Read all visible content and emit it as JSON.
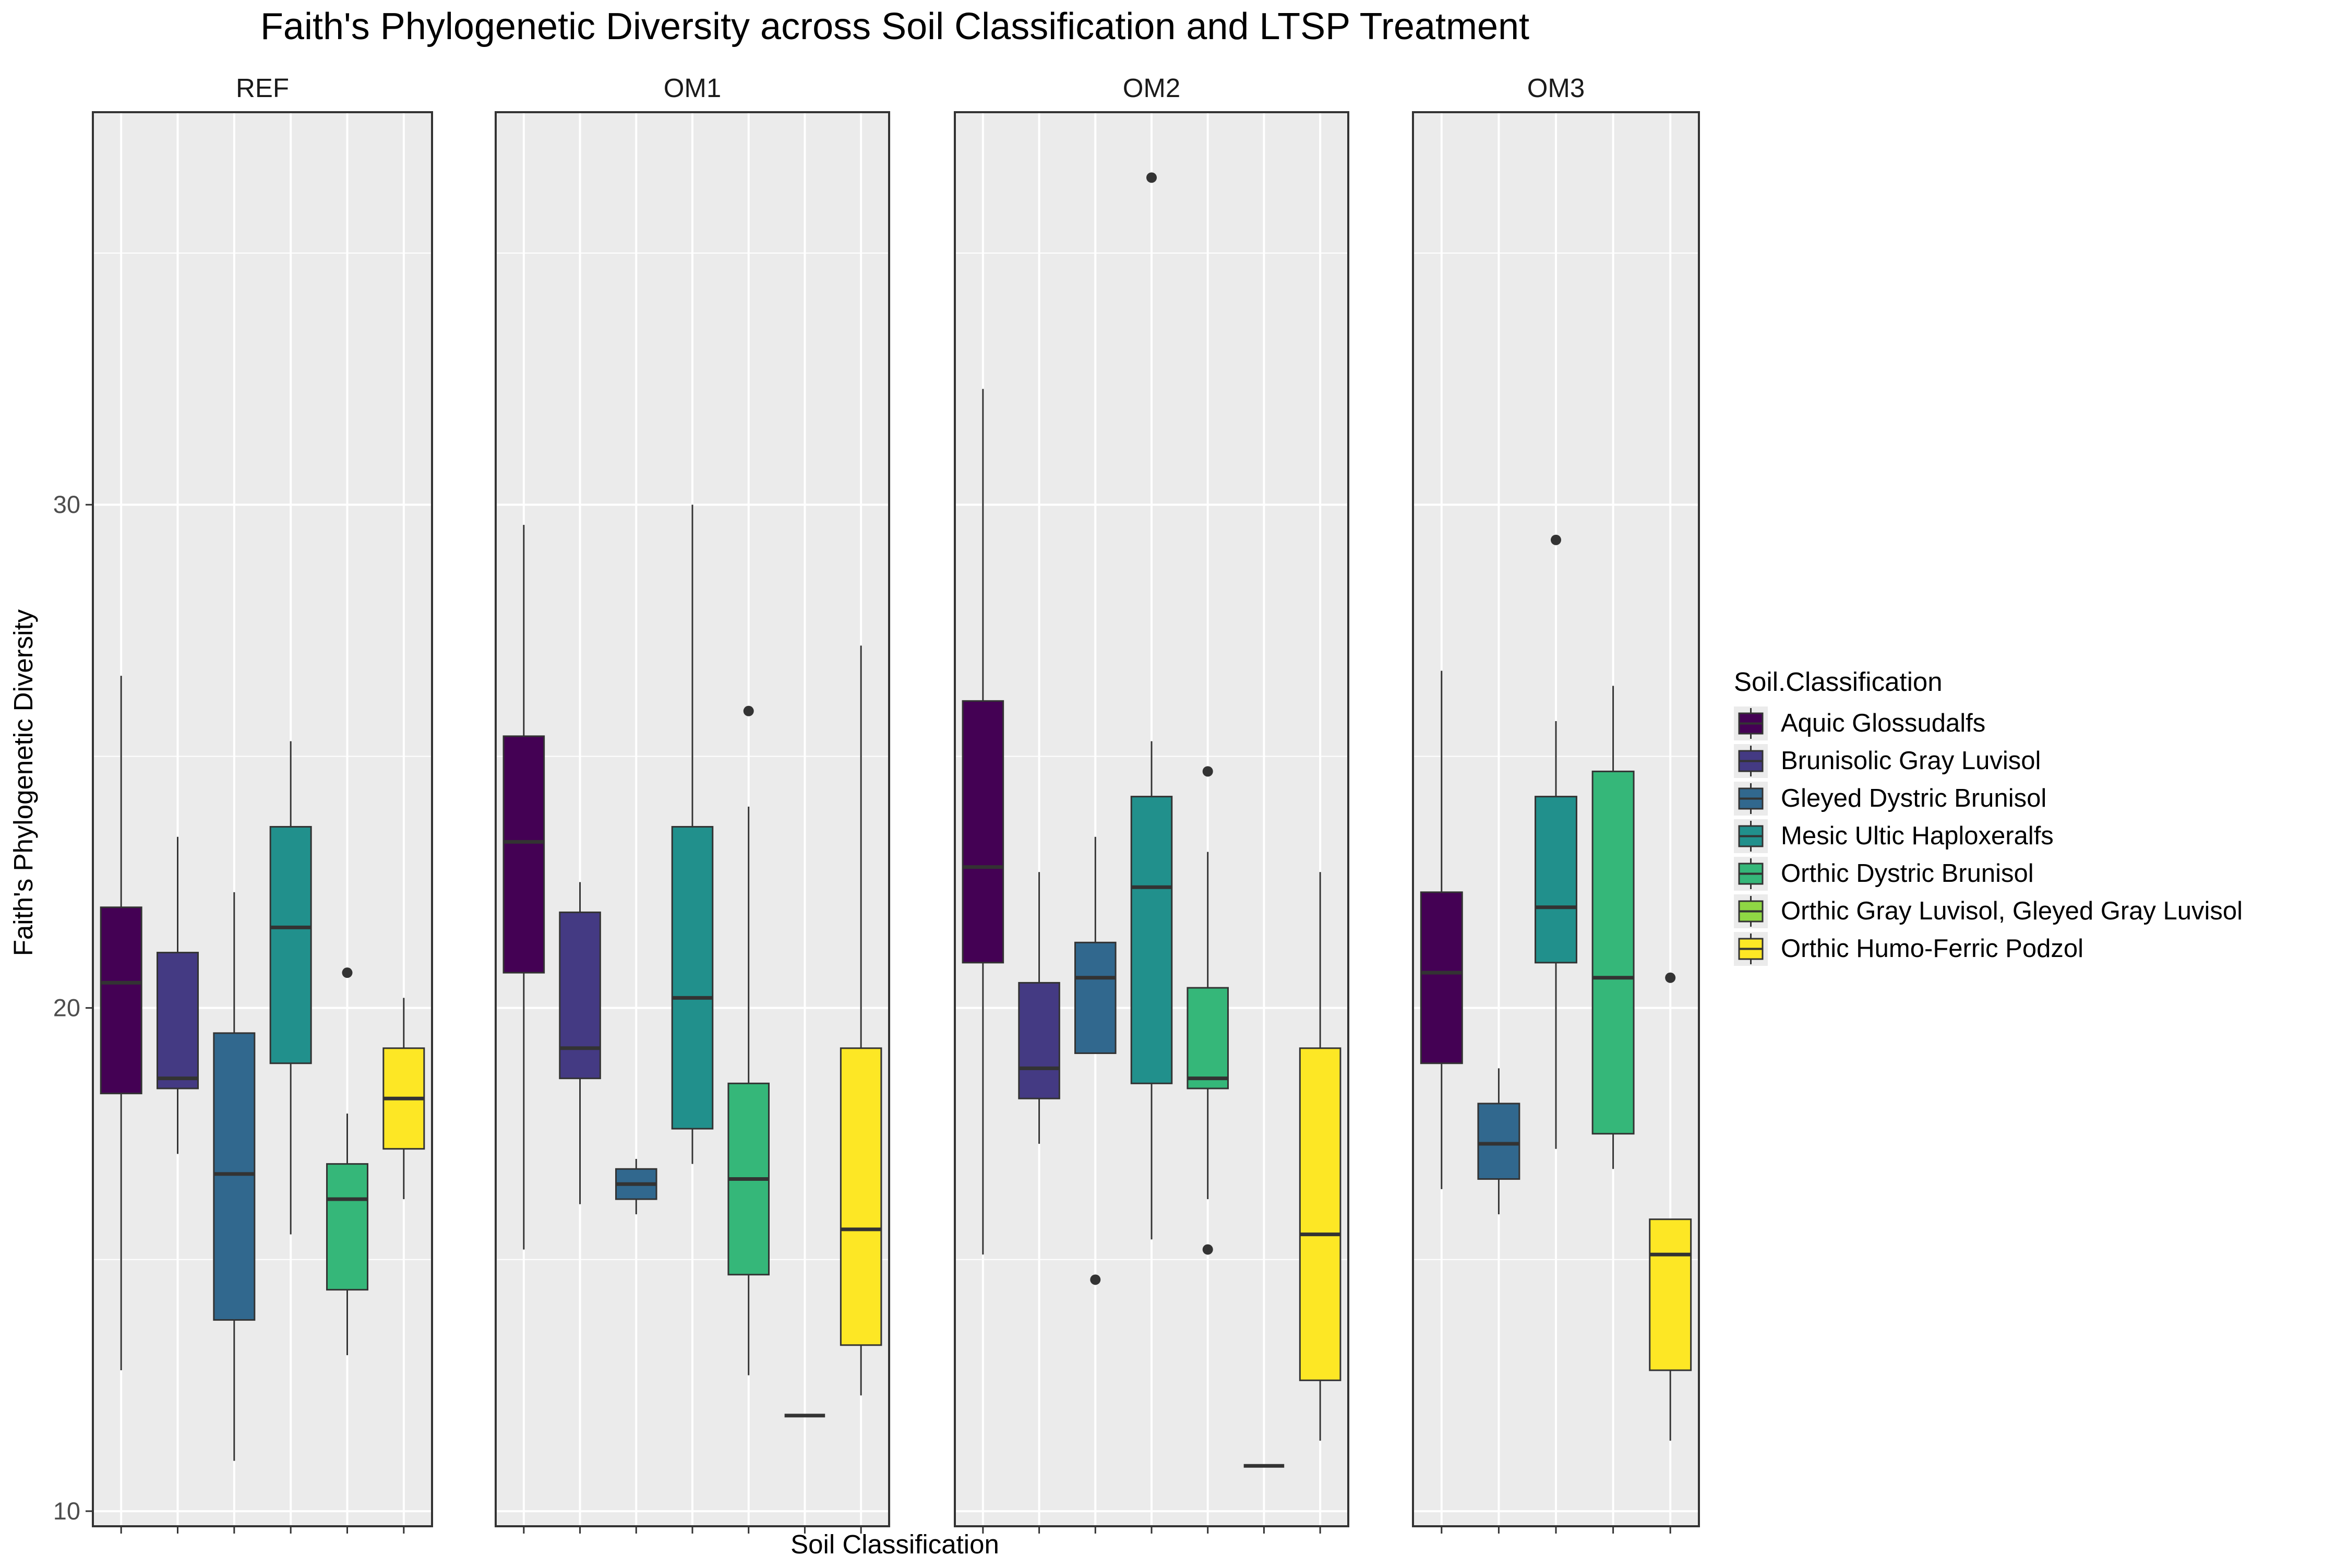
{
  "chart_data": {
    "type": "boxplot",
    "title": "Faith's Phylogenetic Diversity across Soil Classification and LTSP Treatment",
    "xlabel": "Soil Classification",
    "ylabel": "Faith's Phylogenetic Diversity",
    "ylim": [
      9.7,
      37.8
    ],
    "yticks": [
      10,
      20,
      30
    ],
    "grid": true,
    "legend": {
      "title": "Soil.Classification",
      "position": "right",
      "entries": [
        "Aquic Glossudalfs",
        "Brunisolic Gray Luvisol",
        "Gleyed Dystric Brunisol",
        "Mesic Ultic Haploxeralfs",
        "Orthic Dystric Brunisol",
        "Orthic Gray Luvisol, Gleyed Gray Luvisol",
        "Orthic Humo-Ferric Podzol"
      ]
    },
    "colors": {
      "Aquic Glossudalfs": "#440154",
      "Brunisolic Gray Luvisol": "#443A83",
      "Gleyed Dystric Brunisol": "#31688E",
      "Mesic Ultic Haploxeralfs": "#21908C",
      "Orthic Dystric Brunisol": "#35B779",
      "Orthic Gray Luvisol, Gleyed Gray Luvisol": "#8FD744",
      "Orthic Humo-Ferric Podzol": "#FDE725"
    },
    "panels": [
      {
        "label": "REF",
        "categories": [
          "Aquic Glossudalfs",
          "Brunisolic Gray Luvisol",
          "Gleyed Dystric Brunisol",
          "Mesic Ultic Haploxeralfs",
          "Orthic Dystric Brunisol",
          "Orthic Humo-Ferric Podzol"
        ],
        "boxes": [
          {
            "category": "Aquic Glossudalfs",
            "min": 12.8,
            "q1": 18.3,
            "median": 20.5,
            "q3": 22.0,
            "max": 26.6,
            "outliers": []
          },
          {
            "category": "Brunisolic Gray Luvisol",
            "min": 17.1,
            "q1": 18.4,
            "median": 18.6,
            "q3": 21.1,
            "max": 23.4,
            "outliers": []
          },
          {
            "category": "Gleyed Dystric Brunisol",
            "min": 11.0,
            "q1": 13.8,
            "median": 16.7,
            "q3": 19.5,
            "max": 22.3,
            "outliers": []
          },
          {
            "category": "Mesic Ultic Haploxeralfs",
            "min": 15.5,
            "q1": 18.9,
            "median": 21.6,
            "q3": 23.6,
            "max": 25.3,
            "outliers": []
          },
          {
            "category": "Orthic Dystric Brunisol",
            "min": 13.1,
            "q1": 14.4,
            "median": 16.2,
            "q3": 16.9,
            "max": 17.9,
            "outliers": [
              20.7
            ]
          },
          {
            "category": "Orthic Humo-Ferric Podzol",
            "min": 16.2,
            "q1": 17.2,
            "median": 18.2,
            "q3": 19.2,
            "max": 20.2,
            "outliers": []
          }
        ]
      },
      {
        "label": "OM1",
        "categories": [
          "Aquic Glossudalfs",
          "Brunisolic Gray Luvisol",
          "Gleyed Dystric Brunisol",
          "Mesic Ultic Haploxeralfs",
          "Orthic Dystric Brunisol",
          "Orthic Gray Luvisol, Gleyed Gray Luvisol",
          "Orthic Humo-Ferric Podzol"
        ],
        "boxes": [
          {
            "category": "Aquic Glossudalfs",
            "min": 15.2,
            "q1": 20.7,
            "median": 23.3,
            "q3": 25.4,
            "max": 29.6,
            "outliers": []
          },
          {
            "category": "Brunisolic Gray Luvisol",
            "min": 16.1,
            "q1": 18.6,
            "median": 19.2,
            "q3": 21.9,
            "max": 22.5,
            "outliers": []
          },
          {
            "category": "Gleyed Dystric Brunisol",
            "min": 15.9,
            "q1": 16.2,
            "median": 16.5,
            "q3": 16.8,
            "max": 17.0,
            "outliers": []
          },
          {
            "category": "Mesic Ultic Haploxeralfs",
            "min": 16.9,
            "q1": 17.6,
            "median": 20.2,
            "q3": 23.6,
            "max": 30.0,
            "outliers": []
          },
          {
            "category": "Orthic Dystric Brunisol",
            "min": 12.7,
            "q1": 14.7,
            "median": 16.6,
            "q3": 18.5,
            "max": 24.0,
            "outliers": [
              25.9
            ]
          },
          {
            "category": "Orthic Gray Luvisol, Gleyed Gray Luvisol",
            "min": 11.9,
            "q1": 11.9,
            "median": 11.9,
            "q3": 11.9,
            "max": 11.9,
            "outliers": []
          },
          {
            "category": "Orthic Humo-Ferric Podzol",
            "min": 12.3,
            "q1": 13.3,
            "median": 15.6,
            "q3": 19.2,
            "max": 27.2,
            "outliers": []
          }
        ]
      },
      {
        "label": "OM2",
        "categories": [
          "Aquic Glossudalfs",
          "Brunisolic Gray Luvisol",
          "Gleyed Dystric Brunisol",
          "Mesic Ultic Haploxeralfs",
          "Orthic Dystric Brunisol",
          "Orthic Gray Luvisol, Gleyed Gray Luvisol",
          "Orthic Humo-Ferric Podzol"
        ],
        "boxes": [
          {
            "category": "Aquic Glossudalfs",
            "min": 15.1,
            "q1": 20.9,
            "median": 22.8,
            "q3": 26.1,
            "max": 32.3,
            "outliers": []
          },
          {
            "category": "Brunisolic Gray Luvisol",
            "min": 17.3,
            "q1": 18.2,
            "median": 18.8,
            "q3": 20.5,
            "max": 22.7,
            "outliers": []
          },
          {
            "category": "Gleyed Dystric Brunisol",
            "min": 19.1,
            "q1": 19.1,
            "median": 20.6,
            "q3": 21.3,
            "max": 23.4,
            "outliers": [
              14.6
            ]
          },
          {
            "category": "Mesic Ultic Haploxeralfs",
            "min": 15.4,
            "q1": 18.5,
            "median": 22.4,
            "q3": 24.2,
            "max": 25.3,
            "outliers": [
              36.5
            ]
          },
          {
            "category": "Orthic Dystric Brunisol",
            "min": 16.2,
            "q1": 18.4,
            "median": 18.6,
            "q3": 20.4,
            "max": 23.1,
            "outliers": [
              24.7,
              15.2
            ]
          },
          {
            "category": "Orthic Gray Luvisol, Gleyed Gray Luvisol",
            "min": 10.9,
            "q1": 10.9,
            "median": 10.9,
            "q3": 10.9,
            "max": 10.9,
            "outliers": []
          },
          {
            "category": "Orthic Humo-Ferric Podzol",
            "min": 11.4,
            "q1": 12.6,
            "median": 15.5,
            "q3": 19.2,
            "max": 22.7,
            "outliers": []
          }
        ]
      },
      {
        "label": "OM3",
        "categories": [
          "Aquic Glossudalfs",
          "Gleyed Dystric Brunisol",
          "Mesic Ultic Haploxeralfs",
          "Orthic Dystric Brunisol",
          "Orthic Humo-Ferric Podzol"
        ],
        "boxes": [
          {
            "category": "Aquic Glossudalfs",
            "min": 16.4,
            "q1": 18.9,
            "median": 20.7,
            "q3": 22.3,
            "max": 26.7,
            "outliers": []
          },
          {
            "category": "Gleyed Dystric Brunisol",
            "min": 15.9,
            "q1": 16.6,
            "median": 17.3,
            "q3": 18.1,
            "max": 18.8,
            "outliers": []
          },
          {
            "category": "Mesic Ultic Haploxeralfs",
            "min": 17.2,
            "q1": 20.9,
            "median": 22.0,
            "q3": 24.2,
            "max": 25.7,
            "outliers": [
              29.3
            ]
          },
          {
            "category": "Orthic Dystric Brunisol",
            "min": 16.8,
            "q1": 17.5,
            "median": 20.6,
            "q3": 24.7,
            "max": 26.4,
            "outliers": []
          },
          {
            "category": "Orthic Humo-Ferric Podzol",
            "min": 11.4,
            "q1": 12.8,
            "median": 15.1,
            "q3": 15.8,
            "max": 15.8,
            "outliers": [
              20.6
            ]
          }
        ]
      }
    ]
  }
}
